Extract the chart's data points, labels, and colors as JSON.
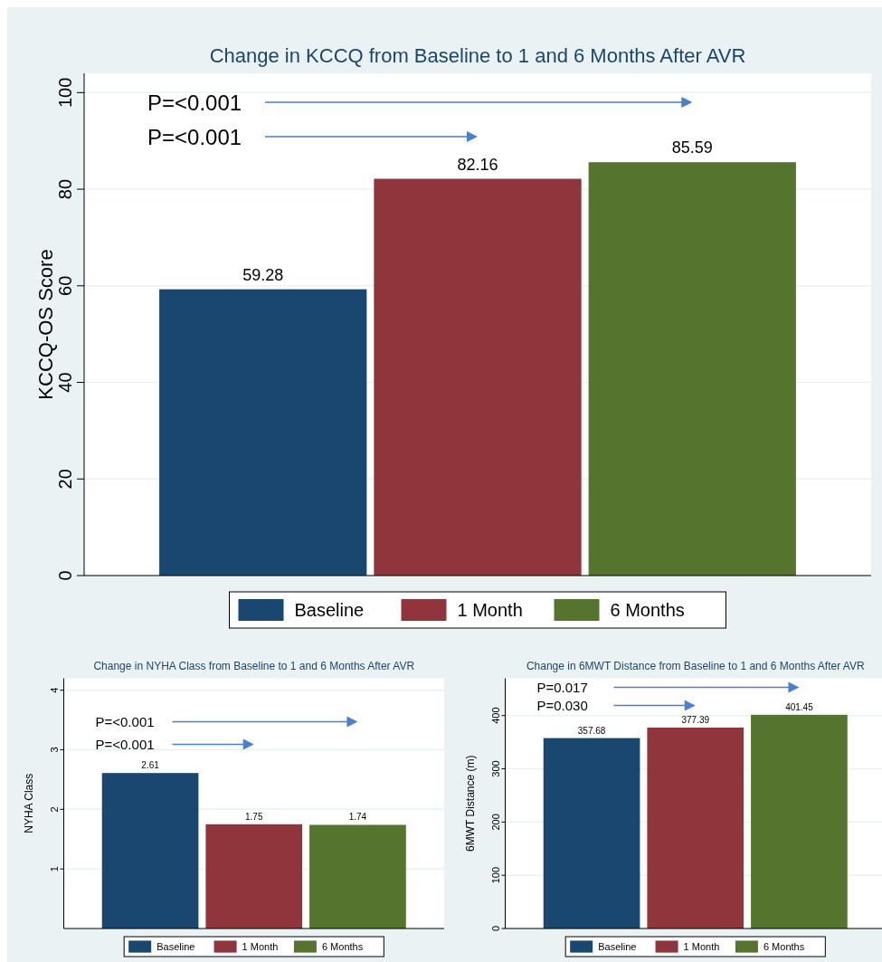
{
  "chart_data": [
    {
      "type": "bar",
      "title": "Change in KCCQ from Baseline to 1 and 6 Months After AVR",
      "ylabel": "KCCQ-OS Score",
      "categories": [
        null
      ],
      "series": [
        {
          "name": "Baseline",
          "color": "#1a476f",
          "values": [
            59.28
          ]
        },
        {
          "name": "1 Month",
          "color": "#90353b",
          "values": [
            82.16
          ]
        },
        {
          "name": "6 Months",
          "color": "#55752f",
          "values": [
            85.59
          ]
        }
      ],
      "ylim": [
        0,
        104
      ],
      "yticks": [
        0,
        20,
        40,
        60,
        80,
        100
      ],
      "grid": "y",
      "legend": "bottom",
      "data_labels": true,
      "annotations": [
        "P=<0.001",
        "P=<0.001"
      ]
    },
    {
      "type": "bar",
      "title": "Change in NYHA Class from Baseline to 1 and 6 Months After AVR",
      "ylabel": "NYHA Class",
      "categories": [
        null
      ],
      "series": [
        {
          "name": "Baseline",
          "color": "#1a476f",
          "values": [
            2.61
          ]
        },
        {
          "name": "1 Month",
          "color": "#90353b",
          "values": [
            1.75
          ]
        },
        {
          "name": "6 Months",
          "color": "#55752f",
          "values": [
            1.74
          ]
        }
      ],
      "ylim": [
        0,
        4.2
      ],
      "yticks": [
        1,
        2,
        3,
        4
      ],
      "grid": "y",
      "legend": "bottom",
      "data_labels": true,
      "annotations": [
        "P=<0.001",
        "P=<0.001"
      ]
    },
    {
      "type": "bar",
      "title": "Change in 6MWT Distance from Baseline to 1 and 6 Months After AVR",
      "ylabel": "6MWT Distance (m)",
      "categories": [
        null
      ],
      "series": [
        {
          "name": "Baseline",
          "color": "#1a476f",
          "values": [
            357.68
          ]
        },
        {
          "name": "1 Month",
          "color": "#90353b",
          "values": [
            377.39
          ]
        },
        {
          "name": "6 Months",
          "color": "#55752f",
          "values": [
            401.45
          ]
        }
      ],
      "ylim": [
        0,
        470
      ],
      "yticks": [
        0,
        100,
        200,
        300,
        400
      ],
      "grid": "y",
      "legend": "bottom",
      "data_labels": true,
      "annotations": [
        "P=0.017",
        "P=0.030"
      ]
    }
  ]
}
